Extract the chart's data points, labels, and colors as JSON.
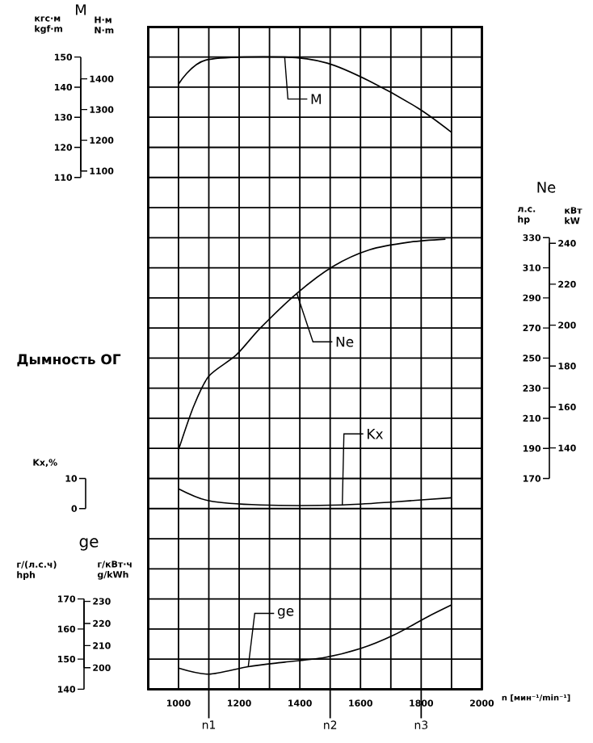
{
  "chart_data": [
    {
      "type": "line",
      "xlabel": "n [мин⁻¹/min⁻¹]",
      "xlim": [
        900,
        2000
      ],
      "xticks": [
        {
          "value": 900,
          "label": null
        },
        1000,
        {
          "value": 1100,
          "label": null
        },
        1200,
        {
          "value": 1300,
          "label": null
        },
        1400,
        {
          "value": 1500,
          "label": null
        },
        1600,
        {
          "value": 1700,
          "label": null
        },
        1800,
        {
          "value": 1900,
          "label": null
        },
        2000
      ],
      "ylim": [
        -60,
        160
      ],
      "yticks": [
        110,
        120,
        130,
        140,
        150
      ],
      "ylabel": "кгс·м kgf·m",
      "y2lim": [
        -588,
        1569
      ],
      "y2ticks": [
        1100,
        1200,
        1300,
        1400
      ],
      "y2label": "Н·м N·m",
      "grid": true,
      "annotations": [
        "M"
      ],
      "ref_lines": [
        {
          "axis": "x",
          "value": 1100,
          "label": "n1"
        },
        {
          "axis": "x",
          "value": 1500,
          "label": "n2"
        },
        {
          "axis": "x",
          "value": 1800,
          "label": "n3"
        }
      ],
      "series": [
        {
          "name": "M",
          "color": "#000000",
          "x": [
            1000,
            1090,
            1350,
            1490,
            1630,
            1790,
            1900
          ],
          "values": [
            141,
            149,
            150,
            148,
            142,
            133,
            125
          ]
        }
      ]
    },
    {
      "type": "line",
      "xlim": [
        900,
        2000
      ],
      "ylim": [
        30,
        470
      ],
      "yticks": [
        170,
        190,
        210,
        230,
        250,
        270,
        290,
        310,
        330
      ],
      "ylabel": "л.с. hp",
      "y2lim": [
        22.1,
        345.7
      ],
      "y2ticks": [
        140,
        160,
        180,
        200,
        220,
        240
      ],
      "y2label": "кВт kW",
      "tick_labels": "y",
      "annotations": [
        "Ne"
      ],
      "series": [
        {
          "name": "Ne",
          "color": "#000000",
          "x": [
            1000,
            1050,
            1100,
            1190,
            1270,
            1390,
            1510,
            1630,
            1760,
            1880
          ],
          "values": [
            189,
            218,
            238,
            252,
            270,
            293,
            311,
            322,
            327,
            329
          ]
        }
      ]
    },
    {
      "type": "line",
      "xlim": [
        900,
        2000
      ],
      "ylim": [
        -60,
        160
      ],
      "yticks": [
        0,
        10
      ],
      "ylabel": "Kx,%",
      "tick_labels": "y",
      "annotations": [
        "Дымность ОГ"
      ],
      "series": [
        {
          "name": "Kx",
          "color": "#000000",
          "x": [
            1000,
            1100,
            1270,
            1540,
            1720,
            1900
          ],
          "values": [
            6.6,
            2.6,
            1.2,
            1.2,
            2.3,
            3.6
          ]
        }
      ]
    },
    {
      "type": "line",
      "xlim": [
        900,
        2000
      ],
      "ylim": [
        140,
        360
      ],
      "yticks": [
        140,
        150,
        160,
        170
      ],
      "ylabel": "г/(л.с.ч) hph",
      "y2lim": [
        190.3,
        489.5
      ],
      "y2ticks": [
        200,
        210,
        220,
        230
      ],
      "y2label": "г/кВт·ч g/kWh",
      "tick_labels": "y",
      "annotations": [
        "ge"
      ],
      "series": [
        {
          "name": "ge",
          "color": "#000000",
          "x": [
            1000,
            1100,
            1230,
            1350,
            1480,
            1600,
            1710,
            1820,
            1900
          ],
          "values": [
            147,
            145,
            147.5,
            149,
            150.5,
            153.5,
            158,
            164,
            168
          ]
        }
      ]
    }
  ]
}
